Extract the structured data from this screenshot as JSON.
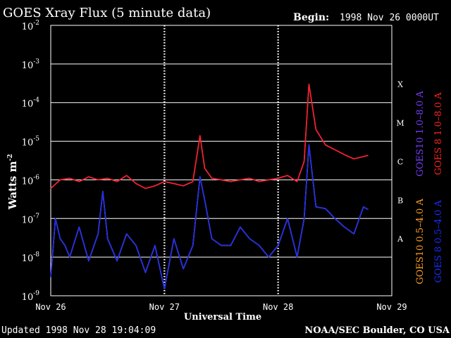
{
  "header": {
    "title": "GOES Xray Flux (5 minute data)",
    "begin_label": "Begin:",
    "begin_value": "1998 Nov 26 0000UT"
  },
  "footer": {
    "updated": "Updated 1998 Nov 28 19:04:09",
    "credit": "NOAA/SEC Boulder, CO USA"
  },
  "chart_data": {
    "type": "line",
    "title": "GOES Xray Flux (5 minute data)",
    "xlabel": "Universal Time",
    "ylabel": "Watts m",
    "ylabel_exp": "-2",
    "yscale": "log",
    "ylim": [
      1e-09,
      0.01
    ],
    "xlim": [
      "1998-11-26T00:00",
      "1998-11-29T00:00"
    ],
    "x_ticks": [
      "Nov 26",
      "Nov 27",
      "Nov 28",
      "Nov 29"
    ],
    "y_ticks": [
      {
        "base": "10",
        "exp": "-2"
      },
      {
        "base": "10",
        "exp": "-3"
      },
      {
        "base": "10",
        "exp": "-4"
      },
      {
        "base": "10",
        "exp": "-5"
      },
      {
        "base": "10",
        "exp": "-6"
      },
      {
        "base": "10",
        "exp": "-7"
      },
      {
        "base": "10",
        "exp": "-8"
      },
      {
        "base": "10",
        "exp": "-9"
      }
    ],
    "flare_classes": [
      "X",
      "M",
      "C",
      "B",
      "A"
    ],
    "grid": true,
    "legend_position": "right (vertical)",
    "series": [
      {
        "name": "GOES10 1.0–8.0 A",
        "color": "#7a3cff",
        "x": [
          "1998-11-26T00:00",
          "1998-11-26T02:00",
          "1998-11-26T04:00",
          "1998-11-26T06:00",
          "1998-11-26T08:00",
          "1998-11-26T10:00",
          "1998-11-26T12:00",
          "1998-11-26T14:00",
          "1998-11-26T16:00",
          "1998-11-26T18:00",
          "1998-11-26T20:00",
          "1998-11-26T22:00",
          "1998-11-27T00:00",
          "1998-11-27T02:00",
          "1998-11-27T04:00",
          "1998-11-27T06:00",
          "1998-11-27T07:30",
          "1998-11-27T08:30",
          "1998-11-27T10:00",
          "1998-11-27T12:00",
          "1998-11-27T14:00",
          "1998-11-27T16:00",
          "1998-11-27T18:00",
          "1998-11-27T20:00",
          "1998-11-27T22:00",
          "1998-11-28T00:00",
          "1998-11-28T02:00",
          "1998-11-28T04:00",
          "1998-11-28T05:30",
          "1998-11-28T06:30",
          "1998-11-28T08:00",
          "1998-11-28T10:00",
          "1998-11-28T12:00",
          "1998-11-28T14:00",
          "1998-11-28T16:00",
          "1998-11-28T18:00",
          "1998-11-28T19:00"
        ],
        "y": [
          6e-07,
          1e-06,
          1.1e-06,
          9e-07,
          1.2e-06,
          1e-06,
          1.1e-06,
          9e-07,
          1.3e-06,
          8e-07,
          6e-07,
          7e-07,
          9e-07,
          8e-07,
          7e-07,
          9e-07,
          1.4e-05,
          2e-06,
          1.1e-06,
          1e-06,
          9e-07,
          1e-06,
          1.1e-06,
          9e-07,
          1e-06,
          1.1e-06,
          1.3e-06,
          9e-07,
          3e-06,
          0.0003,
          2e-05,
          8e-06,
          6e-06,
          4.5e-06,
          3.5e-06,
          4e-06,
          4.3e-06
        ]
      },
      {
        "name": "GOES 8 1.0–8.0 A",
        "color": "#ff2020",
        "x": [
          "1998-11-26T00:00",
          "1998-11-26T02:00",
          "1998-11-26T04:00",
          "1998-11-26T06:00",
          "1998-11-26T08:00",
          "1998-11-26T10:00",
          "1998-11-26T12:00",
          "1998-11-26T14:00",
          "1998-11-26T16:00",
          "1998-11-26T18:00",
          "1998-11-26T20:00",
          "1998-11-26T22:00",
          "1998-11-27T00:00",
          "1998-11-27T02:00",
          "1998-11-27T04:00",
          "1998-11-27T06:00",
          "1998-11-27T07:30",
          "1998-11-27T08:30",
          "1998-11-27T10:00",
          "1998-11-27T12:00",
          "1998-11-27T14:00",
          "1998-11-27T16:00",
          "1998-11-27T18:00",
          "1998-11-27T20:00",
          "1998-11-27T22:00",
          "1998-11-28T00:00",
          "1998-11-28T02:00",
          "1998-11-28T04:00",
          "1998-11-28T05:30",
          "1998-11-28T06:30",
          "1998-11-28T08:00",
          "1998-11-28T10:00",
          "1998-11-28T12:00",
          "1998-11-28T14:00",
          "1998-11-28T16:00",
          "1998-11-28T18:00",
          "1998-11-28T19:00"
        ],
        "y": [
          6e-07,
          1e-06,
          1.1e-06,
          9e-07,
          1.2e-06,
          1e-06,
          1.1e-06,
          9e-07,
          1.3e-06,
          8e-07,
          6e-07,
          7e-07,
          9e-07,
          8e-07,
          7e-07,
          9e-07,
          1.4e-05,
          2e-06,
          1.1e-06,
          1e-06,
          9e-07,
          1e-06,
          1.1e-06,
          9e-07,
          1e-06,
          1.1e-06,
          1.3e-06,
          9e-07,
          3e-06,
          0.0003,
          2e-05,
          8e-06,
          6e-06,
          4.5e-06,
          3.5e-06,
          4e-06,
          4.3e-06
        ]
      },
      {
        "name": "GOES10 0.5–4.0 A",
        "color": "#ffa020",
        "x": [
          "1998-11-26T00:00",
          "1998-11-26T01:00",
          "1998-11-26T02:00",
          "1998-11-26T03:00",
          "1998-11-26T04:00",
          "1998-11-26T06:00",
          "1998-11-26T08:00",
          "1998-11-26T10:00",
          "1998-11-26T11:00",
          "1998-11-26T12:00",
          "1998-11-26T14:00",
          "1998-11-26T16:00",
          "1998-11-26T18:00",
          "1998-11-26T20:00",
          "1998-11-26T22:00",
          "1998-11-27T00:00",
          "1998-11-27T02:00",
          "1998-11-27T04:00",
          "1998-11-27T06:00",
          "1998-11-27T07:30",
          "1998-11-27T08:30",
          "1998-11-27T10:00",
          "1998-11-27T12:00",
          "1998-11-27T14:00",
          "1998-11-27T16:00",
          "1998-11-27T18:00",
          "1998-11-27T20:00",
          "1998-11-27T22:00",
          "1998-11-28T00:00",
          "1998-11-28T02:00",
          "1998-11-28T04:00",
          "1998-11-28T05:30",
          "1998-11-28T06:30",
          "1998-11-28T08:00",
          "1998-11-28T10:00",
          "1998-11-28T12:00",
          "1998-11-28T14:00",
          "1998-11-28T16:00",
          "1998-11-28T18:00",
          "1998-11-28T19:00"
        ],
        "y": [
          3e-09,
          1e-07,
          3e-08,
          2e-08,
          1e-08,
          6e-08,
          8e-09,
          4e-08,
          5e-07,
          3e-08,
          8e-09,
          4e-08,
          2e-08,
          4e-09,
          2e-08,
          1.5e-09,
          3e-08,
          5e-09,
          2e-08,
          1.2e-06,
          3e-07,
          3e-08,
          2e-08,
          2e-08,
          6e-08,
          3e-08,
          2e-08,
          1e-08,
          2e-08,
          1e-07,
          1e-08,
          1e-07,
          8e-06,
          2e-07,
          1.8e-07,
          1e-07,
          6e-08,
          4e-08,
          2e-07,
          1.7e-07
        ]
      },
      {
        "name": "GOES 8 0.5–4.0 A",
        "color": "#1a2cff",
        "x": [
          "1998-11-26T00:00",
          "1998-11-26T01:00",
          "1998-11-26T02:00",
          "1998-11-26T03:00",
          "1998-11-26T04:00",
          "1998-11-26T06:00",
          "1998-11-26T08:00",
          "1998-11-26T10:00",
          "1998-11-26T11:00",
          "1998-11-26T12:00",
          "1998-11-26T14:00",
          "1998-11-26T16:00",
          "1998-11-26T18:00",
          "1998-11-26T20:00",
          "1998-11-26T22:00",
          "1998-11-27T00:00",
          "1998-11-27T02:00",
          "1998-11-27T04:00",
          "1998-11-27T06:00",
          "1998-11-27T07:30",
          "1998-11-27T08:30",
          "1998-11-27T10:00",
          "1998-11-27T12:00",
          "1998-11-27T14:00",
          "1998-11-27T16:00",
          "1998-11-27T18:00",
          "1998-11-27T20:00",
          "1998-11-27T22:00",
          "1998-11-28T00:00",
          "1998-11-28T02:00",
          "1998-11-28T04:00",
          "1998-11-28T05:30",
          "1998-11-28T06:30",
          "1998-11-28T08:00",
          "1998-11-28T10:00",
          "1998-11-28T12:00",
          "1998-11-28T14:00",
          "1998-11-28T16:00",
          "1998-11-28T18:00",
          "1998-11-28T19:00"
        ],
        "y": [
          3e-09,
          1e-07,
          3e-08,
          2e-08,
          1e-08,
          6e-08,
          8e-09,
          4e-08,
          5e-07,
          3e-08,
          8e-09,
          4e-08,
          2e-08,
          4e-09,
          2e-08,
          1.5e-09,
          3e-08,
          5e-09,
          2e-08,
          1.2e-06,
          3e-07,
          3e-08,
          2e-08,
          2e-08,
          6e-08,
          3e-08,
          2e-08,
          1e-08,
          2e-08,
          1e-07,
          1e-08,
          1e-07,
          8e-06,
          2e-07,
          1.8e-07,
          1e-07,
          6e-08,
          4e-08,
          2e-07,
          1.7e-07
        ]
      }
    ]
  }
}
